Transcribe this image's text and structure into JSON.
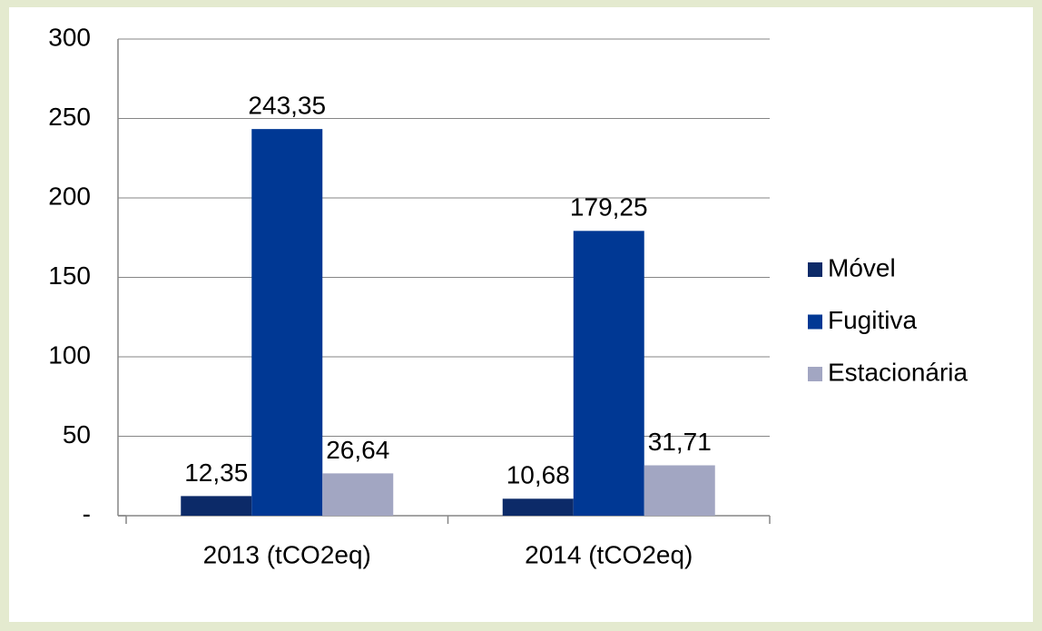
{
  "chart_data": {
    "type": "bar",
    "categories": [
      "2013 (tCO2eq)",
      "2014 (tCO2eq)"
    ],
    "series": [
      {
        "name": "Móvel",
        "color": "#0c2a68",
        "values": [
          12.35,
          10.68
        ],
        "value_labels": [
          "12,35",
          "10,68"
        ]
      },
      {
        "name": "Fugitiva",
        "color": "#003894",
        "values": [
          243.35,
          179.25
        ],
        "value_labels": [
          "243,35",
          "179,25"
        ]
      },
      {
        "name": "Estacionária",
        "color": "#a2a6c2",
        "values": [
          26.64,
          31.71
        ],
        "value_labels": [
          "26,64",
          "31,71"
        ]
      }
    ],
    "ylim": [
      0,
      300
    ],
    "yticks": [
      {
        "value": 0,
        "label": "-"
      },
      50,
      100,
      150,
      200,
      250,
      300
    ],
    "grid": true,
    "legend": "right"
  }
}
